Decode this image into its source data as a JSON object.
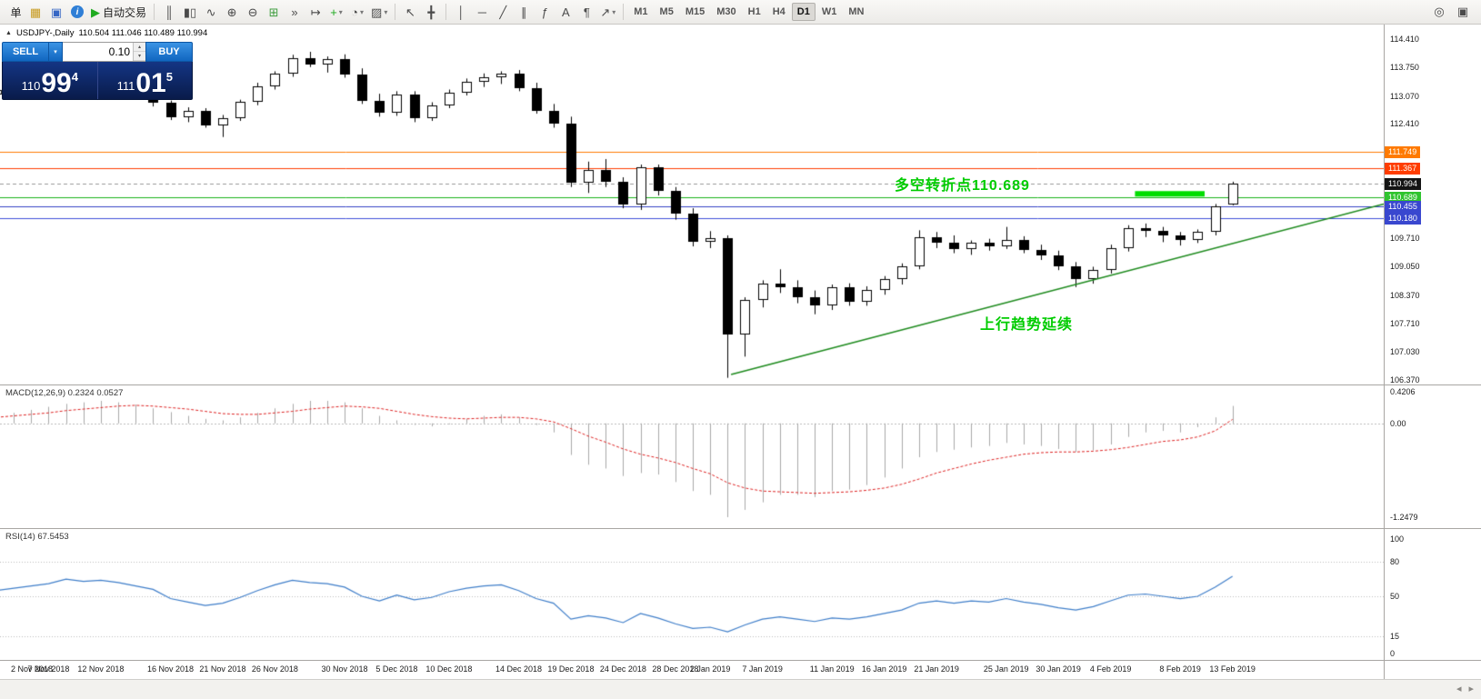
{
  "header": {
    "arrow": "▲",
    "symbol": "USDJPY-,Daily",
    "ohlc": "110.504 111.046 110.489 110.994"
  },
  "trade_panel": {
    "sell": "SELL",
    "buy": "BUY",
    "volume": "0.10",
    "sell_small": "110",
    "sell_big": "99",
    "sell_sup": "4",
    "buy_small": "111",
    "buy_big": "01",
    "buy_sup": "5",
    "caret": "▾",
    "spin_up": "▴",
    "spin_down": "▾"
  },
  "annotations": {
    "pivot": "多空转折点110.689",
    "trend": "上行趋势延续"
  },
  "indicators": {
    "macd": "MACD(12,26,9) 0.2324 0.0527",
    "rsi": "RSI(14) 67.5453"
  },
  "nav": {
    "scroll_left": "◂",
    "scroll_right": "▸"
  },
  "colors": {
    "bull": "#ffffff",
    "bear": "#000000",
    "candle_border": "#000000",
    "macd_hist": "#a8a8a8",
    "macd_signal": "#dd2222",
    "rsi_line": "#3f7ec9",
    "annotation": "#00cc00",
    "panel_blue": "#1166c0",
    "panel_navy": "#0b2462",
    "grid_dotted": "#bbbbbb"
  },
  "toolbar": {
    "items": [
      {
        "t": "btn",
        "name": "new-order-button",
        "label": "单"
      },
      {
        "t": "icon",
        "name": "profiles-icon",
        "glyph": "▦",
        "color": "#c79a1e"
      },
      {
        "t": "icon",
        "name": "terminal-icon",
        "glyph": "▣",
        "color": "#3566c4"
      },
      {
        "t": "icon",
        "name": "help-icon",
        "glyph": "i",
        "circle": true
      },
      {
        "t": "btn",
        "name": "autotrading-button",
        "glyph": "▶",
        "color": "#1faa1f",
        "label": "自动交易"
      },
      {
        "t": "sep"
      },
      {
        "t": "icon",
        "name": "bar-chart-icon",
        "glyph": "║"
      },
      {
        "t": "icon",
        "name": "candlestick-icon",
        "glyph": "▮▯"
      },
      {
        "t": "icon",
        "name": "line-chart-icon",
        "glyph": "∿"
      },
      {
        "t": "icon",
        "name": "zoom-in-icon",
        "glyph": "⊕"
      },
      {
        "t": "icon",
        "name": "zoom-out-icon",
        "glyph": "⊖"
      },
      {
        "t": "icon",
        "name": "tile-windows-icon",
        "glyph": "⊞",
        "color": "#3f9d3f"
      },
      {
        "t": "icon",
        "name": "auto-scroll-icon",
        "glyph": "»"
      },
      {
        "t": "icon",
        "name": "chart-shift-icon",
        "glyph": "↦"
      },
      {
        "t": "icon",
        "name": "indicators-icon",
        "glyph": "+",
        "color": "#1faa1f",
        "caret": true
      },
      {
        "t": "icon",
        "name": "periods-icon",
        "glyph": "◔",
        "caret": true
      },
      {
        "t": "icon",
        "name": "templates-icon",
        "glyph": "▨",
        "caret": true
      },
      {
        "t": "sep"
      },
      {
        "t": "icon",
        "name": "cursor-icon",
        "glyph": "↖"
      },
      {
        "t": "icon",
        "name": "crosshair-icon",
        "glyph": "╋"
      },
      {
        "t": "sep"
      },
      {
        "t": "icon",
        "name": "vertical-line-tool-icon",
        "glyph": "│"
      },
      {
        "t": "icon",
        "name": "horizontal-line-tool-icon",
        "glyph": "─"
      },
      {
        "t": "icon",
        "name": "trendline-tool-icon",
        "glyph": "╱"
      },
      {
        "t": "icon",
        "name": "channel-tool-icon",
        "glyph": "∥"
      },
      {
        "t": "icon",
        "name": "fibonacci-tool-icon",
        "glyph": "ƒ"
      },
      {
        "t": "icon",
        "name": "text-tool-icon",
        "glyph": "A"
      },
      {
        "t": "icon",
        "name": "label-tool-icon",
        "glyph": "¶"
      },
      {
        "t": "icon",
        "name": "arrows-tool-icon",
        "glyph": "↗",
        "caret": true
      },
      {
        "t": "sep"
      },
      {
        "t": "tf",
        "label": "M1"
      },
      {
        "t": "tf",
        "label": "M5"
      },
      {
        "t": "tf",
        "label": "M15"
      },
      {
        "t": "tf",
        "label": "M30"
      },
      {
        "t": "tf",
        "label": "H1"
      },
      {
        "t": "tf",
        "label": "H4"
      },
      {
        "t": "tf",
        "label": "D1",
        "a": true
      },
      {
        "t": "tf",
        "label": "W1"
      },
      {
        "t": "tf",
        "label": "MN"
      }
    ],
    "right_items": [
      {
        "name": "search-icon",
        "glyph": "◎"
      },
      {
        "name": "new-chart-icon",
        "glyph": "▣"
      }
    ]
  },
  "chart_data": {
    "type": "candlestick",
    "symbol": "USDJPY-",
    "timeframe": "Daily",
    "candles": [
      [
        113.1,
        113.3,
        112.98,
        113.22
      ],
      [
        113.22,
        113.42,
        113.08,
        113.35
      ],
      [
        113.35,
        113.55,
        113.18,
        113.48
      ],
      [
        113.48,
        113.7,
        113.3,
        113.6
      ],
      [
        113.6,
        113.98,
        113.45,
        113.9
      ],
      [
        113.9,
        114.06,
        113.68,
        113.8
      ],
      [
        113.8,
        113.98,
        113.58,
        113.72
      ],
      [
        113.72,
        113.88,
        113.45,
        113.55
      ],
      [
        113.55,
        113.62,
        113.12,
        113.2
      ],
      [
        113.2,
        113.28,
        112.82,
        112.9
      ],
      [
        112.9,
        112.96,
        112.5,
        112.56
      ],
      [
        112.56,
        112.8,
        112.45,
        112.72
      ],
      [
        112.72,
        112.78,
        112.32,
        112.38
      ],
      [
        112.38,
        112.62,
        112.1,
        112.55
      ],
      [
        112.55,
        112.98,
        112.48,
        112.92
      ],
      [
        112.92,
        113.38,
        112.85,
        113.3
      ],
      [
        113.3,
        113.65,
        113.22,
        113.6
      ],
      [
        113.6,
        114.04,
        113.52,
        113.97
      ],
      [
        113.97,
        114.11,
        113.75,
        113.82
      ],
      [
        113.82,
        114.0,
        113.62,
        113.93
      ],
      [
        113.93,
        114.05,
        113.5,
        113.58
      ],
      [
        113.58,
        113.72,
        112.88,
        112.95
      ],
      [
        112.95,
        113.12,
        112.58,
        112.68
      ],
      [
        112.68,
        113.18,
        112.6,
        113.1
      ],
      [
        113.1,
        113.18,
        112.45,
        112.55
      ],
      [
        112.55,
        112.92,
        112.48,
        112.85
      ],
      [
        112.85,
        113.22,
        112.78,
        113.15
      ],
      [
        113.15,
        113.48,
        113.08,
        113.4
      ],
      [
        113.4,
        113.6,
        113.28,
        113.52
      ],
      [
        113.52,
        113.65,
        113.35,
        113.6
      ],
      [
        113.6,
        113.68,
        113.18,
        113.25
      ],
      [
        113.25,
        113.38,
        112.65,
        112.72
      ],
      [
        112.72,
        112.88,
        112.32,
        112.42
      ],
      [
        112.42,
        112.58,
        110.92,
        111.02
      ],
      [
        111.02,
        111.52,
        110.78,
        111.32
      ],
      [
        111.32,
        111.58,
        110.92,
        111.05
      ],
      [
        111.05,
        111.15,
        110.42,
        110.5
      ],
      [
        110.5,
        111.45,
        110.38,
        111.38
      ],
      [
        111.38,
        111.45,
        110.72,
        110.82
      ],
      [
        110.82,
        110.92,
        110.15,
        110.3
      ],
      [
        110.3,
        110.42,
        109.52,
        109.62
      ],
      [
        109.62,
        109.88,
        109.48,
        109.72
      ],
      [
        109.72,
        109.78,
        106.42,
        107.45
      ],
      [
        107.45,
        108.32,
        106.92,
        108.25
      ],
      [
        108.25,
        108.72,
        108.08,
        108.65
      ],
      [
        108.65,
        108.98,
        108.42,
        108.55
      ],
      [
        108.55,
        108.72,
        108.18,
        108.32
      ],
      [
        108.32,
        108.48,
        107.92,
        108.12
      ],
      [
        108.12,
        108.62,
        108.02,
        108.55
      ],
      [
        108.55,
        108.65,
        108.12,
        108.22
      ],
      [
        108.22,
        108.58,
        108.12,
        108.5
      ],
      [
        108.5,
        108.82,
        108.38,
        108.75
      ],
      [
        108.75,
        109.12,
        108.62,
        109.06
      ],
      [
        109.06,
        109.9,
        108.98,
        109.74
      ],
      [
        109.74,
        109.86,
        109.48,
        109.6
      ],
      [
        109.6,
        109.78,
        109.36,
        109.45
      ],
      [
        109.45,
        109.66,
        109.32,
        109.6
      ],
      [
        109.6,
        109.7,
        109.42,
        109.52
      ],
      [
        109.52,
        109.98,
        109.46,
        109.68
      ],
      [
        109.68,
        109.76,
        109.36,
        109.44
      ],
      [
        109.44,
        109.56,
        109.2,
        109.3
      ],
      [
        109.3,
        109.42,
        108.96,
        109.06
      ],
      [
        109.06,
        109.15,
        108.56,
        108.76
      ],
      [
        108.76,
        109.04,
        108.64,
        108.96
      ],
      [
        108.96,
        109.56,
        108.88,
        109.48
      ],
      [
        109.48,
        110.02,
        109.4,
        109.96
      ],
      [
        109.96,
        110.06,
        109.74,
        109.88
      ],
      [
        109.88,
        109.98,
        109.62,
        109.78
      ],
      [
        109.78,
        109.86,
        109.54,
        109.68
      ],
      [
        109.68,
        109.92,
        109.6,
        109.86
      ],
      [
        109.86,
        110.52,
        109.78,
        110.46
      ],
      [
        110.504,
        111.046,
        110.489,
        110.994
      ]
    ],
    "macd": [
      0.1,
      0.14,
      0.18,
      0.22,
      0.26,
      0.28,
      0.3,
      0.28,
      0.25,
      0.2,
      0.15,
      0.1,
      0.06,
      0.04,
      0.08,
      0.14,
      0.2,
      0.26,
      0.3,
      0.3,
      0.28,
      0.2,
      0.1,
      0.04,
      -0.02,
      -0.04,
      0.0,
      0.06,
      0.1,
      0.12,
      0.08,
      -0.02,
      -0.12,
      -0.42,
      -0.55,
      -0.6,
      -0.7,
      -0.66,
      -0.68,
      -0.78,
      -0.9,
      -0.95,
      -1.2479,
      -1.15,
      -1.05,
      -0.95,
      -0.95,
      -0.98,
      -0.9,
      -0.88,
      -0.82,
      -0.72,
      -0.6,
      -0.45,
      -0.38,
      -0.35,
      -0.32,
      -0.3,
      -0.26,
      -0.28,
      -0.3,
      -0.34,
      -0.38,
      -0.36,
      -0.28,
      -0.18,
      -0.12,
      -0.1,
      -0.12,
      -0.05,
      0.08,
      0.2324
    ],
    "macd_signal": [
      0.08,
      0.1,
      0.12,
      0.14,
      0.17,
      0.19,
      0.21,
      0.23,
      0.24,
      0.23,
      0.21,
      0.19,
      0.16,
      0.13,
      0.12,
      0.12,
      0.14,
      0.16,
      0.19,
      0.21,
      0.23,
      0.22,
      0.2,
      0.16,
      0.12,
      0.09,
      0.07,
      0.06,
      0.07,
      0.08,
      0.08,
      0.06,
      0.02,
      -0.07,
      -0.17,
      -0.25,
      -0.34,
      -0.41,
      -0.46,
      -0.52,
      -0.6,
      -0.67,
      -0.79,
      -0.86,
      -0.9,
      -0.91,
      -0.92,
      -0.93,
      -0.92,
      -0.91,
      -0.89,
      -0.86,
      -0.81,
      -0.74,
      -0.66,
      -0.6,
      -0.54,
      -0.49,
      -0.45,
      -0.41,
      -0.39,
      -0.38,
      -0.38,
      -0.37,
      -0.35,
      -0.32,
      -0.28,
      -0.24,
      -0.22,
      -0.18,
      -0.1,
      0.0527
    ],
    "rsi": [
      55,
      57,
      59,
      61,
      65,
      63,
      64,
      62,
      59,
      56,
      48,
      45,
      42,
      44,
      49,
      55,
      60,
      64,
      62,
      61,
      58,
      50,
      46,
      51,
      47,
      49,
      54,
      57,
      59,
      60,
      55,
      48,
      44,
      30,
      33,
      31,
      27,
      35,
      31,
      26,
      22,
      23,
      19,
      25,
      30,
      32,
      30,
      28,
      31,
      30,
      32,
      35,
      38,
      44,
      46,
      44,
      46,
      45,
      48,
      45,
      43,
      40,
      38,
      41,
      46,
      51,
      52,
      50,
      48,
      50,
      58,
      67.5453
    ],
    "price_axis_plain": [
      "114.410",
      "113.750",
      "113.070",
      "112.410",
      "109.710",
      "109.050",
      "108.370",
      "107.710",
      "107.030",
      "106.370"
    ],
    "price_tags": [
      {
        "text": "111.749",
        "price": 111.749,
        "color": "#ff7a00"
      },
      {
        "text": "111.367",
        "price": 111.367,
        "color": "#ff3d00"
      },
      {
        "text": "110.994",
        "price": 110.994,
        "color": "#141414"
      },
      {
        "text": "110.689",
        "price": 110.689,
        "color": "#2fc42f"
      },
      {
        "text": "110.455",
        "price": 110.455,
        "color": "#3947cf"
      },
      {
        "text": "110.180",
        "price": 110.18,
        "color": "#3947cf"
      }
    ],
    "hlines": [
      {
        "price": 111.749,
        "color": "#ff7a00"
      },
      {
        "price": 111.367,
        "color": "#ff3d00"
      },
      {
        "price": 110.994,
        "color": "#999999",
        "dash": true
      },
      {
        "price": 110.689,
        "color": "#19b219"
      },
      {
        "price": 110.455,
        "color": "#3340c4"
      },
      {
        "price": 110.18,
        "color": "#3f4fd8"
      }
    ],
    "trendline": {
      "i1": 42.2,
      "p1": 106.5,
      "i2": 79.9,
      "p2": 110.52,
      "color": "#1d8a1d"
    },
    "highlight_bar": {
      "i1": 65.4,
      "i2": 69.4,
      "price": 110.76,
      "color": "#00dd00"
    },
    "macd_axis": [
      {
        "text": "0.4206",
        "v": 0.4206
      },
      {
        "text": "0.00",
        "v": 0
      },
      {
        "text": "-1.2479",
        "v": -1.2479
      }
    ],
    "rsi_axis": [
      {
        "text": "100",
        "v": 100
      },
      {
        "text": "80",
        "v": 80
      },
      {
        "text": "50",
        "v": 50
      },
      {
        "text": "15",
        "v": 15
      },
      {
        "text": "0",
        "v": 0
      }
    ],
    "rsi_levels": [
      80,
      50,
      15
    ],
    "time_labels": [
      {
        "t": "2 Nov 2018",
        "i": 0
      },
      {
        "t": "7 Nov 2018",
        "i": 3
      },
      {
        "t": "12 Nov 2018",
        "i": 6
      },
      {
        "t": "16 Nov 2018",
        "i": 10
      },
      {
        "t": "21 Nov 2018",
        "i": 13
      },
      {
        "t": "26 Nov 2018",
        "i": 16
      },
      {
        "t": "30 Nov 2018",
        "i": 20
      },
      {
        "t": "5 Dec 2018",
        "i": 23
      },
      {
        "t": "10 Dec 2018",
        "i": 26
      },
      {
        "t": "14 Dec 2018",
        "i": 30
      },
      {
        "t": "19 Dec 2018",
        "i": 33
      },
      {
        "t": "24 Dec 2018",
        "i": 36
      },
      {
        "t": "28 Dec 2018",
        "i": 39
      },
      {
        "t": "2 Jan 2019",
        "i": 41
      },
      {
        "t": "7 Jan 2019",
        "i": 44
      },
      {
        "t": "11 Jan 2019",
        "i": 48
      },
      {
        "t": "16 Jan 2019",
        "i": 51
      },
      {
        "t": "21 Jan 2019",
        "i": 54
      },
      {
        "t": "25 Jan 2019",
        "i": 58
      },
      {
        "t": "30 Jan 2019",
        "i": 61
      },
      {
        "t": "4 Feb 2019",
        "i": 64
      },
      {
        "t": "8 Feb 2019",
        "i": 68
      },
      {
        "t": "13 Feb 2019",
        "i": 71
      }
    ]
  }
}
